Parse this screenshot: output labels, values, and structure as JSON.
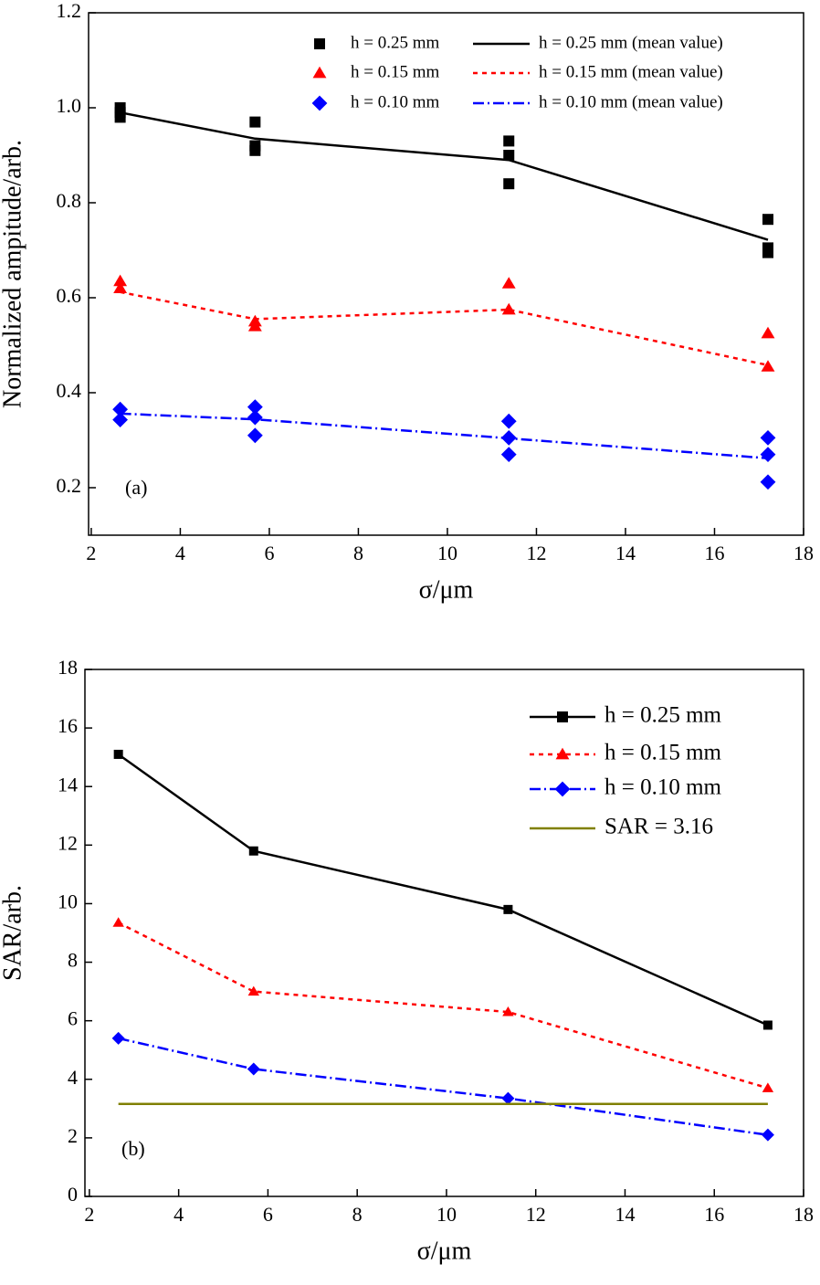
{
  "chart_data": [
    {
      "type": "scatter",
      "annotation": "(a)",
      "xlabel": "σ/μm",
      "ylabel": "Normalized ampitude/arb.",
      "xlim": [
        1.94,
        18
      ],
      "xticks": [
        2,
        4,
        6,
        8,
        10,
        12,
        14,
        16,
        18
      ],
      "ylim": [
        0.1,
        1.2
      ],
      "yticks": [
        0.2,
        0.4,
        0.6,
        0.8,
        {
          "value": 1,
          "label": "1.0"
        },
        1.2
      ],
      "legend": "upper right",
      "series": [
        {
          "name": "h = 0.25 mm",
          "type": "scatter",
          "marker": "square",
          "color": "#000000",
          "x": [
            2.65,
            2.65,
            2.65,
            5.68,
            5.68,
            5.68,
            11.38,
            11.38,
            11.38,
            17.2,
            17.2,
            17.2
          ],
          "values": [
            1.0,
            0.99,
            0.98,
            0.97,
            0.92,
            0.91,
            0.93,
            0.9,
            0.84,
            0.765,
            0.705,
            0.695
          ]
        },
        {
          "name": "h = 0.15 mm",
          "type": "scatter",
          "marker": "triangle",
          "color": "#ff0000",
          "x": [
            2.65,
            2.65,
            5.68,
            5.68,
            11.38,
            11.38,
            17.2,
            17.2
          ],
          "values": [
            0.635,
            0.62,
            0.55,
            0.54,
            0.63,
            0.575,
            0.525,
            0.455
          ]
        },
        {
          "name": "h = 0.10 mm",
          "type": "scatter",
          "marker": "diamond",
          "color": "#0000ff",
          "x": [
            2.65,
            2.65,
            5.68,
            5.68,
            5.68,
            11.38,
            11.38,
            11.38,
            17.2,
            17.2,
            17.2
          ],
          "values": [
            0.365,
            0.343,
            0.37,
            0.348,
            0.31,
            0.34,
            0.305,
            0.27,
            0.305,
            0.27,
            0.212
          ]
        },
        {
          "name": "h = 0.25 mm (mean value)",
          "type": "line",
          "dash": "solid",
          "color": "#000000",
          "x": [
            2.65,
            5.68,
            11.38,
            17.2
          ],
          "values": [
            0.99,
            0.935,
            0.89,
            0.722
          ]
        },
        {
          "name": "h = 0.15 mm (mean value)",
          "type": "line",
          "dash": "dotted",
          "color": "#ff0000",
          "x": [
            2.65,
            5.68,
            11.38,
            17.2
          ],
          "values": [
            0.612,
            0.555,
            0.575,
            0.458
          ]
        },
        {
          "name": "h = 0.10 mm (mean value)",
          "type": "line",
          "dash": "dashdot",
          "color": "#0000ff",
          "x": [
            2.65,
            5.68,
            11.38,
            17.2
          ],
          "values": [
            0.356,
            0.344,
            0.304,
            0.262
          ]
        }
      ]
    },
    {
      "type": "line",
      "annotation": "(b)",
      "xlabel": "σ/μm",
      "ylabel": "SAR/arb.",
      "xlim": [
        1.9,
        18
      ],
      "xticks": [
        2,
        4,
        6,
        8,
        10,
        12,
        14,
        16,
        18
      ],
      "ylim": [
        0,
        18
      ],
      "yticks": [
        0,
        2,
        4,
        6,
        8,
        10,
        12,
        14,
        16,
        18
      ],
      "legend": "upper right",
      "series": [
        {
          "name": "h = 0.25 mm",
          "type": "line",
          "marker": "square",
          "dash": "solid",
          "color": "#000000",
          "x": [
            2.65,
            5.68,
            11.38,
            17.2
          ],
          "values": [
            15.1,
            11.8,
            9.8,
            5.85
          ]
        },
        {
          "name": "h = 0.15 mm",
          "type": "line",
          "marker": "triangle",
          "dash": "dotted",
          "color": "#ff0000",
          "x": [
            2.65,
            5.68,
            11.38,
            17.2
          ],
          "values": [
            9.35,
            7.0,
            6.3,
            3.7
          ]
        },
        {
          "name": "h = 0.10 mm",
          "type": "line",
          "marker": "diamond",
          "dash": "dashdot",
          "color": "#0000ff",
          "x": [
            2.65,
            5.68,
            11.38,
            17.2
          ],
          "values": [
            5.4,
            4.35,
            3.35,
            2.1
          ]
        },
        {
          "name": "SAR = 3.16",
          "type": "hline",
          "dash": "solid",
          "color": "#808000",
          "value": 3.16
        }
      ]
    }
  ]
}
